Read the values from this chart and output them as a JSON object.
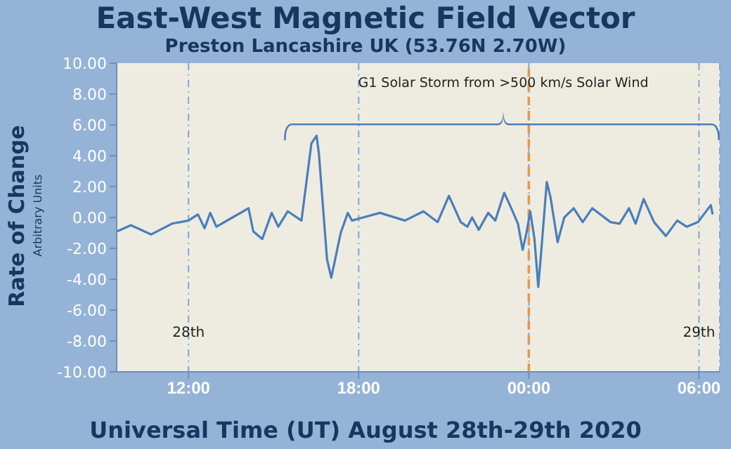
{
  "chart_data": {
    "type": "line",
    "title": "East-West Magnetic Field Vector",
    "subtitle": "Preston Lancashire UK (53.76N 2.70W)",
    "xlabel": "Universal Time (UT) August 28th-29th 2020",
    "ylabel": "Rate of Change",
    "x": [
      "2020-08-28T09:29",
      "2020-08-28T09:58",
      "2020-08-28T10:41",
      "2020-08-28T11:25",
      "2020-08-28T12:00",
      "2020-08-28T12:20",
      "2020-08-28T12:34",
      "2020-08-28T12:46",
      "2020-08-28T12:59",
      "2020-08-28T13:33",
      "2020-08-28T14:07",
      "2020-08-28T14:17",
      "2020-08-28T14:36",
      "2020-08-28T14:56",
      "2020-08-28T15:10",
      "2020-08-28T15:30",
      "2020-08-28T15:59",
      "2020-08-28T16:20",
      "2020-08-28T16:31",
      "2020-08-28T16:36",
      "2020-08-28T16:53",
      "2020-08-28T17:02",
      "2020-08-28T17:22",
      "2020-08-28T17:37",
      "2020-08-28T17:46",
      "2020-08-28T18:45",
      "2020-08-28T19:38",
      "2020-08-28T20:17",
      "2020-08-28T20:47",
      "2020-08-28T21:11",
      "2020-08-28T21:36",
      "2020-08-28T21:50",
      "2020-08-28T22:00",
      "2020-08-28T22:14",
      "2020-08-28T22:34",
      "2020-08-28T22:49",
      "2020-08-28T23:08",
      "2020-08-28T23:23",
      "2020-08-28T23:37",
      "2020-08-28T23:47",
      "2020-08-28T23:55",
      "2020-08-29T00:03",
      "2020-08-29T00:12",
      "2020-08-29T00:20",
      "2020-08-29T00:26",
      "2020-08-29T00:38",
      "2020-08-29T00:46",
      "2020-08-29T01:01",
      "2020-08-29T01:15",
      "2020-08-29T01:35",
      "2020-08-29T01:54",
      "2020-08-29T02:14",
      "2020-08-29T02:53",
      "2020-08-29T03:12",
      "2020-08-29T03:32",
      "2020-08-29T03:46",
      "2020-08-29T04:03",
      "2020-08-29T04:25",
      "2020-08-29T04:50",
      "2020-08-29T05:14",
      "2020-08-29T05:34",
      "2020-08-29T05:58",
      "2020-08-29T06:25",
      "2020-08-29T06:29"
    ],
    "series": [
      {
        "color": "#4a7ebb",
        "values": [
          -0.9,
          -0.5,
          -1.1,
          -0.4,
          -0.2,
          0.2,
          -0.7,
          0.3,
          -0.6,
          0,
          0.6,
          -0.9,
          -1.4,
          0.3,
          -0.6,
          0.4,
          -0.2,
          4.8,
          5.3,
          4.1,
          -2.7,
          -3.9,
          -1.0,
          0.3,
          -0.2,
          0.3,
          -0.2,
          0.4,
          -0.3,
          1.4,
          -0.3,
          -0.6,
          0,
          -0.8,
          0.3,
          -0.2,
          1.6,
          0.6,
          -0.4,
          -2.1,
          -1.0,
          0.4,
          -1.4,
          -4.5,
          -2.3,
          2.3,
          1.3,
          -1.6,
          0,
          0.6,
          -0.3,
          0.6,
          -0.3,
          -0.4,
          0.6,
          -0.4,
          1.2,
          -0.3,
          -1.2,
          -0.2,
          -0.6,
          -0.3,
          0.8,
          0.2
        ]
      }
    ],
    "xlim": [
      "2020-08-28T09:28",
      "2020-08-29T06:44"
    ],
    "xticks": [
      {
        "value": "2020-08-28T12:00",
        "label": "12:00"
      },
      {
        "value": "2020-08-28T18:00",
        "label": "18:00"
      },
      {
        "value": "2020-08-29T00:00",
        "label": "00:00"
      },
      {
        "value": "2020-08-29T06:00",
        "label": "06:00"
      }
    ],
    "ylim": [
      -10,
      10
    ],
    "yticks": [
      {
        "value": -10,
        "label": "-10.00"
      },
      {
        "value": -8,
        "label": "-8.00"
      },
      {
        "value": -6,
        "label": "-6.00"
      },
      {
        "value": -4,
        "label": "-4.00"
      },
      {
        "value": -2,
        "label": "-2.00"
      },
      {
        "value": 0,
        "label": "0.00"
      },
      {
        "value": 2,
        "label": "2.00"
      },
      {
        "value": 4,
        "label": "4.00"
      },
      {
        "value": 6,
        "label": "6.00"
      },
      {
        "value": 8,
        "label": "8.00"
      },
      {
        "value": 10,
        "label": "10.00"
      }
    ],
    "grid": "x",
    "legend": false,
    "marker": "none",
    "line_style": "solid",
    "ref_lines": [
      {
        "axis": "x",
        "value": "2020-08-29T00:00",
        "color": "#e8964a",
        "line_style": "dashed"
      }
    ],
    "annotations": [
      "Arbitrary Units",
      "28th",
      "29th",
      "G1 Solar Storm from >500 km/s Solar Wind"
    ]
  }
}
